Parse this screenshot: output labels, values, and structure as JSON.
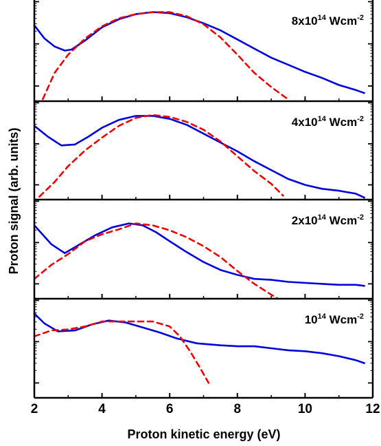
{
  "chart_data": {
    "type": "line",
    "xlabel": "Proton kinetic energy (eV)",
    "ylabel": "Proton signal (arb. units)",
    "xlim": [
      2,
      12
    ],
    "x_ticks": [
      "2",
      "4",
      "6",
      "8",
      "10",
      "12"
    ],
    "y_scale": "log",
    "grid": false,
    "legend": "none",
    "colors": {
      "measured": "#0000dd",
      "fit": "#ee0000",
      "axes": "#000000"
    },
    "panels": [
      {
        "label": {
          "base": "8x10",
          "exp": "14",
          "unit": " Wcm",
          "unit_exp": "-2"
        },
        "series": [
          {
            "style": "solid",
            "color": "#0000dd",
            "points": [
              [
                2.0,
                0.75
              ],
              [
                2.3,
                0.62
              ],
              [
                2.6,
                0.54
              ],
              [
                2.9,
                0.5
              ],
              [
                3.1,
                0.51
              ],
              [
                3.5,
                0.6
              ],
              [
                4.0,
                0.73
              ],
              [
                4.5,
                0.81
              ],
              [
                5.0,
                0.86
              ],
              [
                5.5,
                0.88
              ],
              [
                6.0,
                0.87
              ],
              [
                6.5,
                0.83
              ],
              [
                7.0,
                0.77
              ],
              [
                7.5,
                0.7
              ],
              [
                8.0,
                0.61
              ],
              [
                8.5,
                0.52
              ],
              [
                9.0,
                0.43
              ],
              [
                9.5,
                0.36
              ],
              [
                10.0,
                0.29
              ],
              [
                10.5,
                0.23
              ],
              [
                11.0,
                0.16
              ],
              [
                11.5,
                0.11
              ],
              [
                11.75,
                0.08
              ]
            ]
          },
          {
            "style": "dashed",
            "color": "#ee0000",
            "points": [
              [
                2.25,
                0.02
              ],
              [
                2.6,
                0.28
              ],
              [
                3.0,
                0.46
              ],
              [
                3.5,
                0.62
              ],
              [
                4.0,
                0.74
              ],
              [
                4.5,
                0.82
              ],
              [
                5.0,
                0.86
              ],
              [
                5.5,
                0.88
              ],
              [
                6.0,
                0.88
              ],
              [
                6.5,
                0.84
              ],
              [
                7.0,
                0.76
              ],
              [
                7.5,
                0.63
              ],
              [
                8.0,
                0.46
              ],
              [
                8.5,
                0.28
              ],
              [
                9.0,
                0.14
              ],
              [
                9.45,
                0.03
              ]
            ]
          }
        ]
      },
      {
        "label": {
          "base": "4x10",
          "exp": "14",
          "unit": " Wcm",
          "unit_exp": "-2"
        },
        "series": [
          {
            "style": "solid",
            "color": "#0000dd",
            "points": [
              [
                2.0,
                0.75
              ],
              [
                2.4,
                0.64
              ],
              [
                2.8,
                0.55
              ],
              [
                3.2,
                0.56
              ],
              [
                3.6,
                0.64
              ],
              [
                4.0,
                0.73
              ],
              [
                4.5,
                0.81
              ],
              [
                5.0,
                0.85
              ],
              [
                5.5,
                0.85
              ],
              [
                6.0,
                0.82
              ],
              [
                6.5,
                0.76
              ],
              [
                7.0,
                0.67
              ],
              [
                7.5,
                0.58
              ],
              [
                8.0,
                0.49
              ],
              [
                8.5,
                0.39
              ],
              [
                9.0,
                0.3
              ],
              [
                9.5,
                0.21
              ],
              [
                10.0,
                0.15
              ],
              [
                10.5,
                0.11
              ],
              [
                11.0,
                0.09
              ],
              [
                11.5,
                0.06
              ],
              [
                11.75,
                0.02
              ]
            ]
          },
          {
            "style": "dashed",
            "color": "#ee0000",
            "points": [
              [
                2.15,
                0.03
              ],
              [
                2.6,
                0.18
              ],
              [
                3.0,
                0.34
              ],
              [
                3.5,
                0.5
              ],
              [
                4.0,
                0.63
              ],
              [
                4.5,
                0.75
              ],
              [
                5.0,
                0.83
              ],
              [
                5.5,
                0.86
              ],
              [
                6.0,
                0.84
              ],
              [
                6.5,
                0.79
              ],
              [
                7.0,
                0.71
              ],
              [
                7.5,
                0.59
              ],
              [
                8.0,
                0.44
              ],
              [
                8.5,
                0.29
              ],
              [
                9.0,
                0.16
              ],
              [
                9.35,
                0.04
              ]
            ]
          }
        ]
      },
      {
        "label": {
          "base": "2x10",
          "exp": "14",
          "unit": " Wcm",
          "unit_exp": "-2"
        },
        "series": [
          {
            "style": "solid",
            "color": "#0000dd",
            "points": [
              [
                2.0,
                0.74
              ],
              [
                2.5,
                0.55
              ],
              [
                2.9,
                0.46
              ],
              [
                3.3,
                0.54
              ],
              [
                3.8,
                0.64
              ],
              [
                4.3,
                0.72
              ],
              [
                4.8,
                0.76
              ],
              [
                5.2,
                0.74
              ],
              [
                5.6,
                0.67
              ],
              [
                6.0,
                0.58
              ],
              [
                6.5,
                0.47
              ],
              [
                7.0,
                0.37
              ],
              [
                7.5,
                0.29
              ],
              [
                8.0,
                0.24
              ],
              [
                8.5,
                0.2
              ],
              [
                9.0,
                0.19
              ],
              [
                9.5,
                0.17
              ],
              [
                10.0,
                0.16
              ],
              [
                10.5,
                0.15
              ],
              [
                11.0,
                0.14
              ],
              [
                11.5,
                0.14
              ],
              [
                11.75,
                0.13
              ]
            ]
          },
          {
            "style": "dashed",
            "color": "#ee0000",
            "points": [
              [
                2.0,
                0.2
              ],
              [
                2.5,
                0.34
              ],
              [
                3.0,
                0.45
              ],
              [
                3.5,
                0.58
              ],
              [
                4.0,
                0.65
              ],
              [
                4.5,
                0.7
              ],
              [
                5.0,
                0.76
              ],
              [
                5.5,
                0.74
              ],
              [
                6.0,
                0.69
              ],
              [
                6.5,
                0.62
              ],
              [
                7.0,
                0.53
              ],
              [
                7.5,
                0.42
              ],
              [
                8.0,
                0.28
              ],
              [
                8.5,
                0.15
              ],
              [
                9.0,
                0.04
              ],
              [
                9.2,
                0.0
              ]
            ]
          }
        ]
      },
      {
        "label": {
          "base": "10",
          "exp": "14",
          "unit": " Wcm",
          "unit_exp": "-2"
        },
        "series": [
          {
            "style": "solid",
            "color": "#0000dd",
            "points": [
              [
                2.0,
                0.85
              ],
              [
                2.3,
                0.75
              ],
              [
                2.7,
                0.67
              ],
              [
                3.2,
                0.68
              ],
              [
                3.7,
                0.74
              ],
              [
                4.2,
                0.78
              ],
              [
                4.7,
                0.76
              ],
              [
                5.2,
                0.71
              ],
              [
                5.7,
                0.66
              ],
              [
                6.2,
                0.6
              ],
              [
                6.8,
                0.55
              ],
              [
                7.5,
                0.53
              ],
              [
                8.0,
                0.52
              ],
              [
                8.5,
                0.52
              ],
              [
                9.0,
                0.5
              ],
              [
                9.5,
                0.48
              ],
              [
                10.0,
                0.47
              ],
              [
                10.5,
                0.45
              ],
              [
                11.0,
                0.42
              ],
              [
                11.5,
                0.38
              ],
              [
                11.75,
                0.35
              ]
            ]
          },
          {
            "style": "dashed",
            "color": "#ee0000",
            "points": [
              [
                2.0,
                0.62
              ],
              [
                2.5,
                0.68
              ],
              [
                3.0,
                0.69
              ],
              [
                3.5,
                0.72
              ],
              [
                4.0,
                0.77
              ],
              [
                4.5,
                0.77
              ],
              [
                5.0,
                0.77
              ],
              [
                5.5,
                0.77
              ],
              [
                6.0,
                0.72
              ],
              [
                6.3,
                0.62
              ],
              [
                6.6,
                0.47
              ],
              [
                6.9,
                0.3
              ],
              [
                7.15,
                0.15
              ]
            ]
          }
        ]
      }
    ]
  }
}
